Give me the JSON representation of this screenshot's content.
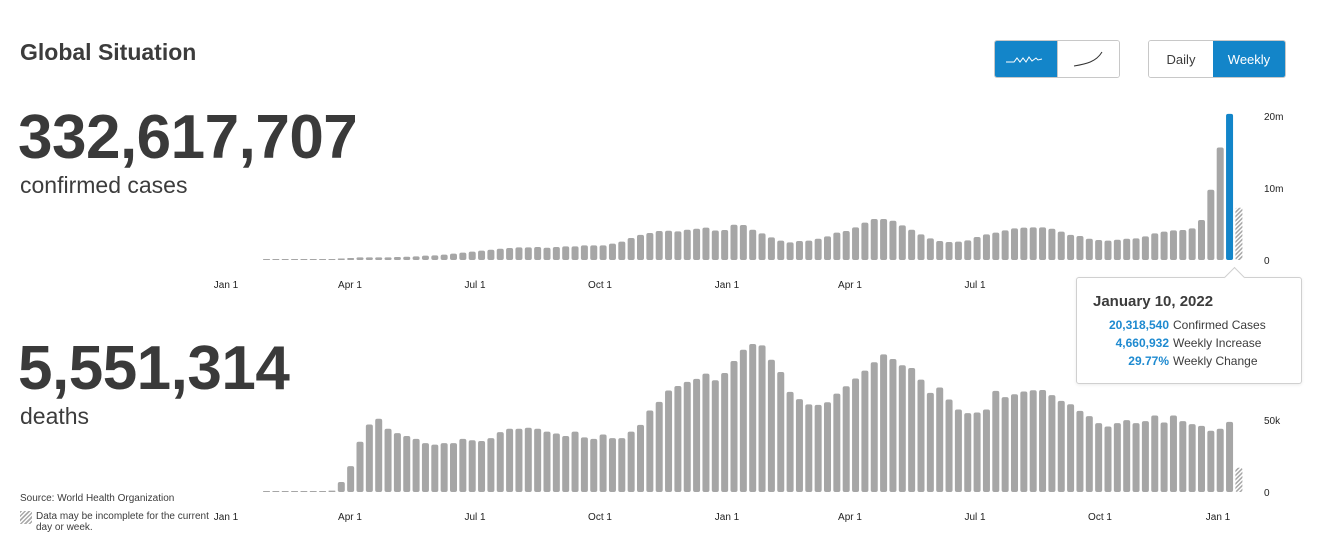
{
  "header": {
    "title": "Global Situation"
  },
  "controls": {
    "scale_buttons": [
      {
        "icon": "linear-squiggle-icon",
        "active": true
      },
      {
        "icon": "log-curve-icon",
        "active": false
      }
    ],
    "period_buttons": [
      {
        "label": "Daily",
        "active": false
      },
      {
        "label": "Weekly",
        "active": true
      }
    ],
    "accent_color": "#1385c9"
  },
  "cases": {
    "total": "332,617,707",
    "label": "confirmed cases"
  },
  "deaths": {
    "total": "5,551,314",
    "label": "deaths"
  },
  "tooltip": {
    "date": "January 10, 2022",
    "rows": [
      {
        "value": "20,318,540",
        "label": "Confirmed Cases"
      },
      {
        "value": "4,660,932",
        "label": "Weekly Increase"
      },
      {
        "value": "29.77%",
        "label": "Weekly Change"
      }
    ]
  },
  "footer": {
    "source": "Source: World Health Organization",
    "incomplete_note": "Data may be incomplete for the current day or week."
  },
  "chart_data": [
    {
      "type": "bar",
      "title": "",
      "unit": "millions",
      "x_tick_labels": [
        "Jan 1",
        "Apr 1",
        "Jul 1",
        "Oct 1",
        "Jan 1",
        "Apr 1",
        "Jul 1",
        "Oct 1",
        "Jan 1"
      ],
      "y_tick_labels": [
        "20m",
        "10m",
        "0"
      ],
      "y_ticks": [
        20,
        10,
        0
      ],
      "ylim": [
        0,
        20.3
      ],
      "bar_color": "#a6a6a6",
      "highlight_color": "#1385c9",
      "highlight_index": 103,
      "incomplete_last": true,
      "values": [
        0,
        0,
        0,
        0,
        0,
        0,
        0,
        0.05,
        0.2,
        0.28,
        0.37,
        0.37,
        0.37,
        0.37,
        0.42,
        0.45,
        0.5,
        0.6,
        0.65,
        0.74,
        0.88,
        1.02,
        1.16,
        1.3,
        1.43,
        1.57,
        1.67,
        1.76,
        1.76,
        1.8,
        1.7,
        1.8,
        1.9,
        1.9,
        2.04,
        2.04,
        2.04,
        2.27,
        2.55,
        3.06,
        3.5,
        3.75,
        4.03,
        4.07,
        3.98,
        4.2,
        4.35,
        4.5,
        4.1,
        4.17,
        4.9,
        4.86,
        4.2,
        3.7,
        3.15,
        2.69,
        2.45,
        2.64,
        2.69,
        2.96,
        3.29,
        3.8,
        4.03,
        4.54,
        5.19,
        5.7,
        5.7,
        5.46,
        4.81,
        4.2,
        3.56,
        3.0,
        2.64,
        2.5,
        2.55,
        2.73,
        3.2,
        3.56,
        3.8,
        4.12,
        4.4,
        4.5,
        4.54,
        4.54,
        4.35,
        3.94,
        3.5,
        3.33,
        2.96,
        2.78,
        2.69,
        2.82,
        2.96,
        3.0,
        3.29,
        3.7,
        3.94,
        4.12,
        4.17,
        4.4,
        5.56,
        9.77,
        15.65,
        20.32,
        7.27
      ]
    },
    {
      "type": "bar",
      "title": "",
      "unit": "thousands",
      "x_tick_labels": [
        "Jan 1",
        "Apr 1",
        "Jul 1",
        "Oct 1",
        "Jan 1",
        "Apr 1",
        "Jul 1",
        "Oct 1",
        "Jan 1"
      ],
      "y_tick_labels": [
        "50k",
        "0"
      ],
      "y_ticks": [
        50,
        0
      ],
      "ylim": [
        0,
        103
      ],
      "bar_color": "#a6a6a6",
      "incomplete_last": true,
      "values": [
        0,
        0,
        0,
        0,
        0,
        0,
        0,
        1,
        7,
        18,
        35,
        47,
        51,
        44,
        41,
        39,
        37,
        34,
        33,
        34,
        34,
        37,
        36,
        35.5,
        37.5,
        41.7,
        44,
        44,
        44.7,
        44,
        42,
        40.7,
        39,
        42,
        38,
        37,
        40,
        37.5,
        37.5,
        42,
        46.7,
        56.7,
        62.7,
        70.6,
        73.8,
        76.6,
        78.7,
        82.4,
        77.8,
        82.8,
        91.2,
        99,
        103,
        102,
        92,
        83.5,
        69.7,
        64.6,
        61,
        60.6,
        62.5,
        68.5,
        73.6,
        79,
        84.5,
        90.3,
        95.8,
        92.6,
        88.2,
        86.3,
        78.2,
        69,
        72.7,
        64.4,
        57.4,
        54.9,
        55.3,
        57.4,
        70.4,
        66,
        68,
        69.9,
        70.8,
        71,
        67.4,
        63.4,
        61.1,
        56.5,
        52.8,
        47.9,
        45.6,
        47.9,
        50,
        47.9,
        49.3,
        53.2,
        48.4,
        53.2,
        49.3,
        47.2,
        46,
        42.6,
        44,
        48.8,
        16.9
      ]
    }
  ]
}
